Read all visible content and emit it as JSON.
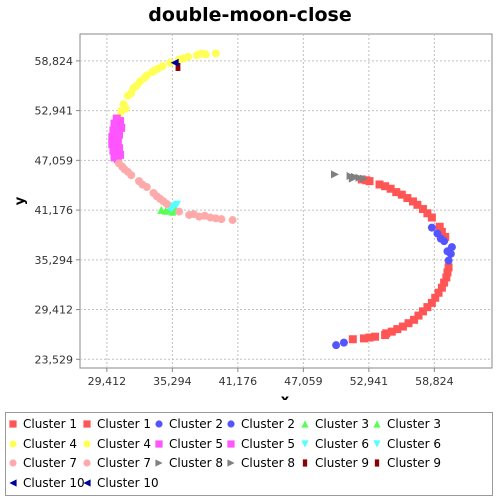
{
  "chart_data": {
    "type": "scatter",
    "title": "double-moon-close",
    "xlabel": "x",
    "ylabel": "y",
    "xlim": [
      27000,
      64000
    ],
    "ylim": [
      22500,
      62000
    ],
    "x_ticks": [
      "29,412",
      "35,294",
      "41,176",
      "47,059",
      "52,941",
      "58,824"
    ],
    "x_tick_values": [
      29412,
      35294,
      41176,
      47059,
      52941,
      58824
    ],
    "y_ticks": [
      "58,824",
      "52,941",
      "47,059",
      "41,176",
      "35,294",
      "29,412",
      "23,529"
    ],
    "y_tick_values": [
      58824,
      52941,
      47059,
      41176,
      35294,
      29412,
      23529
    ],
    "grid": true,
    "legend_position": "bottom",
    "series": [
      {
        "name": "Cluster 1",
        "color": "#ff5555",
        "marker": "square",
        "points": [
          [
            51500,
            25900
          ],
          [
            52500,
            26000
          ],
          [
            53500,
            26200
          ],
          [
            54500,
            26600
          ],
          [
            55500,
            27100
          ],
          [
            56500,
            27800
          ],
          [
            57400,
            28700
          ],
          [
            58200,
            29700
          ],
          [
            58900,
            30800
          ],
          [
            59500,
            32000
          ],
          [
            59900,
            33200
          ],
          [
            60100,
            34400
          ],
          [
            59800,
            38000
          ],
          [
            59300,
            39200
          ],
          [
            58600,
            40300
          ],
          [
            57800,
            41300
          ],
          [
            56900,
            42200
          ],
          [
            55900,
            43000
          ],
          [
            54900,
            43700
          ],
          [
            53900,
            44200
          ],
          [
            53000,
            44600
          ],
          [
            52300,
            44800
          ],
          [
            54400,
            26400
          ],
          [
            56000,
            27400
          ],
          [
            57800,
            29200
          ],
          [
            59200,
            31400
          ],
          [
            60000,
            33800
          ],
          [
            58200,
            40800
          ],
          [
            56400,
            42600
          ],
          [
            54400,
            44000
          ],
          [
            52700,
            44700
          ],
          [
            53000,
            26100
          ],
          [
            55000,
            26800
          ],
          [
            57000,
            28200
          ],
          [
            58600,
            30200
          ],
          [
            59700,
            32600
          ],
          [
            59500,
            38600
          ],
          [
            57300,
            41800
          ],
          [
            55400,
            43300
          ]
        ]
      },
      {
        "name": "Cluster 1",
        "color": "#ff5555",
        "marker": "square",
        "points": []
      },
      {
        "name": "Cluster 2",
        "color": "#5555ff",
        "marker": "circle",
        "points": [
          [
            50000,
            25200
          ],
          [
            50700,
            25500
          ],
          [
            60100,
            35200
          ],
          [
            60300,
            36000
          ],
          [
            60400,
            36800
          ],
          [
            59700,
            37500
          ],
          [
            59100,
            38400
          ],
          [
            58600,
            39100
          ],
          [
            60000,
            36300
          ],
          [
            59400,
            37800
          ]
        ]
      },
      {
        "name": "Cluster 2",
        "color": "#5555ff",
        "marker": "circle",
        "points": []
      },
      {
        "name": "Cluster 3",
        "color": "#55ff55",
        "marker": "triangle-up",
        "points": [
          [
            34300,
            41200
          ],
          [
            34700,
            41100
          ],
          [
            35000,
            41300
          ],
          [
            35300,
            41000
          ],
          [
            35600,
            41200
          ]
        ]
      },
      {
        "name": "Cluster 3",
        "color": "#55ff55",
        "marker": "triangle-up",
        "points": []
      },
      {
        "name": "Cluster 4",
        "color": "#ffff55",
        "marker": "circle",
        "points": [
          [
            30900,
            53700
          ],
          [
            31300,
            54700
          ],
          [
            31800,
            55600
          ],
          [
            32400,
            56400
          ],
          [
            33000,
            57100
          ],
          [
            33700,
            57700
          ],
          [
            34400,
            58200
          ],
          [
            35100,
            58600
          ],
          [
            35900,
            59000
          ],
          [
            36700,
            59300
          ],
          [
            37500,
            59500
          ],
          [
            38300,
            59600
          ],
          [
            39200,
            59700
          ],
          [
            30700,
            52900
          ],
          [
            31100,
            53200
          ],
          [
            31600,
            55000
          ],
          [
            32100,
            55900
          ],
          [
            32800,
            56800
          ],
          [
            33500,
            57500
          ],
          [
            34000,
            57900
          ],
          [
            36300,
            59100
          ],
          [
            37900,
            59700
          ],
          [
            30500,
            52200
          ]
        ]
      },
      {
        "name": "Cluster 4",
        "color": "#ffff55",
        "marker": "circle",
        "points": []
      },
      {
        "name": "Cluster 5",
        "color": "#ff55ff",
        "marker": "square",
        "points": [
          [
            30100,
            47400
          ],
          [
            30000,
            48200
          ],
          [
            29900,
            49000
          ],
          [
            29900,
            49800
          ],
          [
            30000,
            50600
          ],
          [
            30100,
            51400
          ],
          [
            30300,
            52000
          ],
          [
            30600,
            51700
          ],
          [
            30700,
            50900
          ],
          [
            30500,
            50100
          ],
          [
            30400,
            49300
          ],
          [
            30500,
            48500
          ],
          [
            30600,
            47700
          ],
          [
            30400,
            47200
          ]
        ]
      },
      {
        "name": "Cluster 5",
        "color": "#ff55ff",
        "marker": "square",
        "points": []
      },
      {
        "name": "Cluster 6",
        "color": "#55ffff",
        "marker": "triangle-down",
        "points": [
          [
            35200,
            41300
          ],
          [
            35400,
            41600
          ],
          [
            35700,
            41800
          ],
          [
            35000,
            41500
          ]
        ]
      },
      {
        "name": "Cluster 6",
        "color": "#55ffff",
        "marker": "triangle-down",
        "points": []
      },
      {
        "name": "Cluster 7",
        "color": "#ffaaaa",
        "marker": "circle",
        "points": [
          [
            30500,
            46700
          ],
          [
            31000,
            46000
          ],
          [
            31600,
            45300
          ],
          [
            32300,
            44600
          ],
          [
            33000,
            43900
          ],
          [
            33600,
            43200
          ],
          [
            34200,
            42500
          ],
          [
            34800,
            41900
          ],
          [
            35900,
            41000
          ],
          [
            36800,
            40600
          ],
          [
            37700,
            40400
          ],
          [
            38700,
            40300
          ],
          [
            39700,
            40100
          ],
          [
            40700,
            40000
          ],
          [
            31300,
            45700
          ],
          [
            32600,
            44200
          ],
          [
            33900,
            42800
          ],
          [
            37200,
            40700
          ],
          [
            38200,
            40500
          ],
          [
            39200,
            40200
          ],
          [
            30800,
            46300
          ],
          [
            34500,
            42200
          ]
        ]
      },
      {
        "name": "Cluster 7",
        "color": "#ffaaaa",
        "marker": "circle",
        "points": []
      },
      {
        "name": "Cluster 8",
        "color": "#808080",
        "marker": "triangle-right",
        "points": [
          [
            49900,
            45400
          ],
          [
            51300,
            45200
          ],
          [
            51700,
            45100
          ],
          [
            52100,
            45000
          ],
          [
            52500,
            44900
          ],
          [
            51500,
            44900
          ]
        ]
      },
      {
        "name": "Cluster 8",
        "color": "#808080",
        "marker": "triangle-right",
        "points": []
      },
      {
        "name": "Cluster 9",
        "color": "#8b0000",
        "marker": "rect",
        "points": [
          [
            35800,
            58100
          ]
        ]
      },
      {
        "name": "Cluster 9",
        "color": "#8b0000",
        "marker": "rect",
        "points": []
      },
      {
        "name": "Cluster 10",
        "color": "#000099",
        "marker": "triangle-left",
        "points": [
          [
            35500,
            58600
          ]
        ]
      },
      {
        "name": "Cluster 10",
        "color": "#000099",
        "marker": "triangle-left",
        "points": []
      }
    ]
  }
}
